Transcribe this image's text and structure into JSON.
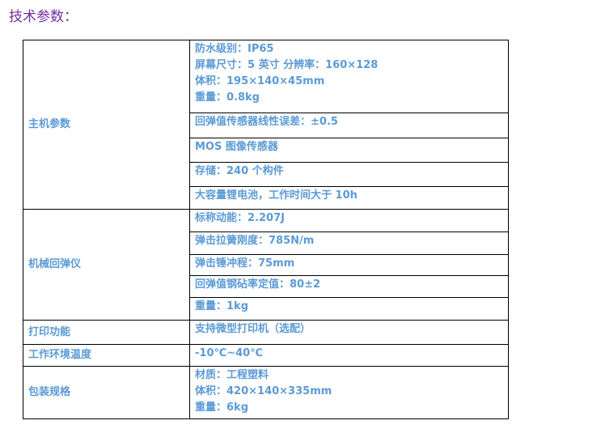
{
  "title": "技术参数：",
  "groups": [
    {
      "label": "主机参数",
      "rows": [
        [
          "防水级别：IP65",
          "屏幕尺寸：5 英寸  分辨率：160×128",
          "体积：195×140×45mm",
          "重量：0.8kg"
        ],
        [
          "回弹值传感器线性误差：±0.5"
        ],
        [
          "MOS 图像传感器"
        ],
        [
          "存储：240 个构件"
        ],
        [
          "大容量锂电池，工作时间大于 10h"
        ]
      ]
    },
    {
      "label": "机械回弹仪",
      "rows": [
        [
          "标称动能：2.207J"
        ],
        [
          "弹击拉簧刚度：785N/m"
        ],
        [
          "弹击锤冲程：75mm"
        ],
        [
          "回弹值钢砧率定值：80±2"
        ],
        [
          "重量：1kg"
        ]
      ]
    },
    {
      "label": "打印功能",
      "rows": [
        [
          "支持微型打印机（选配）"
        ]
      ]
    },
    {
      "label": "工作环境温度",
      "rows": [
        [
          "-10℃~40℃"
        ]
      ]
    },
    {
      "label": "包装规格",
      "rows": [
        [
          "材质：工程塑料",
          "体积：420×140×335mm",
          "重量：6kg"
        ]
      ]
    }
  ],
  "colors": {
    "title": "#7030a0",
    "text": "#5b9bd5"
  }
}
